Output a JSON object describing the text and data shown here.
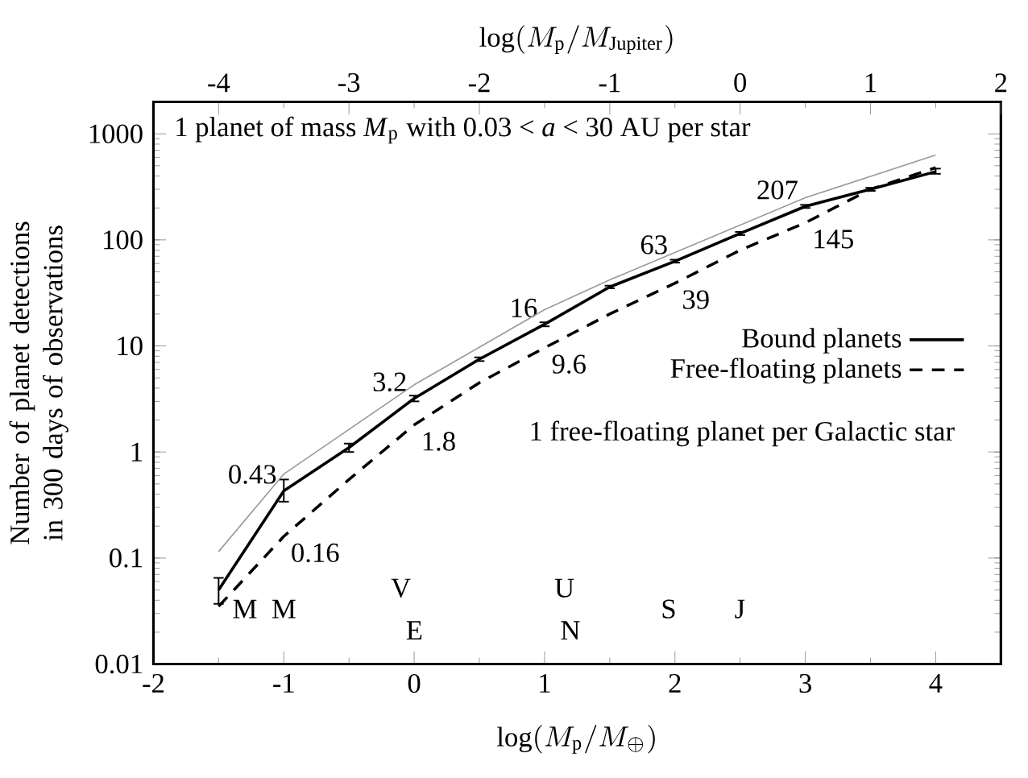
{
  "chart_data": {
    "type": "line",
    "xlabel": "\\log(M_\\mathrm{p}/M_\\oplus)",
    "x2label": "\\log(M_\\mathrm{p}/M_\\mathrm{Jupiter})",
    "ylabel": "Number of planet detections in 300 days of observations",
    "x": [
      -1.5,
      -1,
      -0.5,
      0,
      0.5,
      1,
      1.5,
      2,
      2.5,
      3,
      3.5,
      4
    ],
    "series": [
      {
        "name": "Bound planets",
        "color": "#000000",
        "line_style": "solid",
        "values": [
          0.05,
          0.43,
          1.1,
          3.2,
          7.5,
          16,
          36,
          63,
          115,
          207,
          300,
          440
        ],
        "errors": [
          [
            0.037,
            0.065
          ],
          [
            0.34,
            0.55
          ],
          [
            1.0,
            1.2
          ],
          [
            3.0,
            3.4
          ],
          [
            7.2,
            7.8
          ],
          [
            15.3,
            16.7
          ],
          [
            35,
            37
          ],
          [
            61,
            65
          ],
          [
            111,
            119
          ],
          [
            200,
            214
          ],
          [
            290,
            310
          ],
          [
            420,
            470
          ]
        ],
        "value_labels": [
          null,
          "0.43",
          null,
          "3.2",
          null,
          "16",
          null,
          "63",
          null,
          "207",
          null,
          null
        ]
      },
      {
        "name": "Free-floating planets",
        "color": "#000000",
        "line_style": "dashed",
        "values": [
          0.035,
          0.16,
          0.55,
          1.8,
          4.5,
          9.6,
          20,
          39,
          80,
          145,
          300,
          480
        ],
        "value_labels": [
          null,
          "0.16",
          null,
          "1.8",
          null,
          "9.6",
          null,
          "39",
          null,
          "145",
          null,
          null
        ]
      },
      {
        "color": "#999999",
        "line_style": "solid",
        "x": [
          -1.5,
          -1,
          0,
          1,
          1.5,
          3,
          4
        ],
        "values": [
          0.115,
          0.62,
          4.3,
          22,
          42,
          250,
          630
        ]
      }
    ],
    "annotations": [
      "1 planet of mass *M*$_{p}$ with 0.03 < *a* < 30 AU per star",
      "1 free-floating planet per Galactic star",
      "M",
      "M",
      "V",
      "E",
      "U",
      "N",
      "S",
      "J"
    ],
    "xlim": [
      -2,
      4.5
    ],
    "xticks": [
      -2,
      -1,
      0,
      1,
      2,
      3,
      4
    ],
    "x2lim": [
      -4.5,
      2
    ],
    "x2ticks": [
      -4,
      -3,
      -2,
      -1,
      0,
      1,
      2
    ],
    "ylim": [
      0.01,
      2000
    ],
    "yticks": [
      0.01,
      0.1,
      1,
      10,
      100,
      1000
    ],
    "log": "y",
    "grid": false,
    "legend": "right"
  }
}
